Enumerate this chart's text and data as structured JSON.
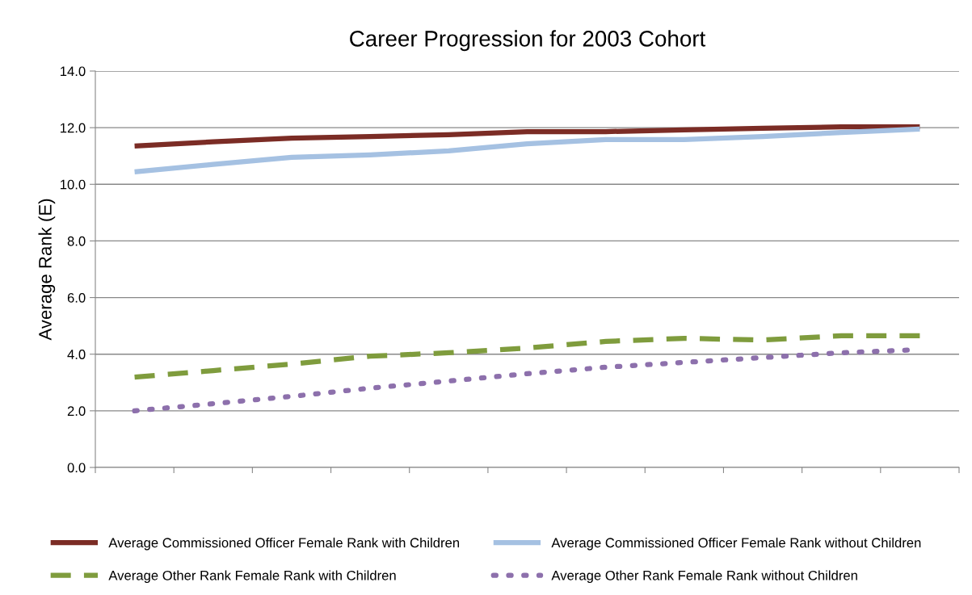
{
  "chart_data": {
    "type": "line",
    "title": "Career Progression for 2003 Cohort",
    "ylabel": "Average Rank (E)",
    "categories": [
      null,
      null,
      null,
      null,
      null,
      null,
      null,
      null,
      null,
      null,
      null
    ],
    "series": [
      {
        "name": "Average Commissioned Officer Female Rank with Children",
        "color": "#7b2c25",
        "line_style": "solid",
        "values": [
          11.35,
          11.5,
          11.63,
          11.69,
          11.75,
          11.86,
          11.86,
          11.92,
          11.98,
          12.03,
          12.03
        ]
      },
      {
        "name": "Average Commissioned Officer Female Rank without Children",
        "color": "#a5c1e2",
        "line_style": "solid",
        "values": [
          10.44,
          10.7,
          10.95,
          11.04,
          11.18,
          11.43,
          11.58,
          11.58,
          11.69,
          11.83,
          11.95
        ]
      },
      {
        "name": "Average Other Rank Female Rank with Children",
        "color": "#7f9c3d",
        "line_style": "dashed",
        "values": [
          3.19,
          3.42,
          3.65,
          3.93,
          4.05,
          4.22,
          4.45,
          4.56,
          4.5,
          4.65,
          4.65
        ]
      },
      {
        "name": "Average Other Rank Female Rank without Children",
        "color": "#8d70ac",
        "line_style": "dotted",
        "values": [
          2.0,
          2.25,
          2.51,
          2.8,
          3.05,
          3.31,
          3.54,
          3.71,
          3.88,
          4.05,
          4.16
        ]
      }
    ],
    "ylim": [
      0,
      14
    ],
    "yticks": [
      {
        "value": 0,
        "label": "0.0"
      },
      {
        "value": 2,
        "label": "2.0"
      },
      {
        "value": 4,
        "label": "4.0"
      },
      {
        "value": 6,
        "label": "6.0"
      },
      {
        "value": 8,
        "label": "8.0"
      },
      {
        "value": 10,
        "label": "10.0"
      },
      {
        "value": 12,
        "label": "12.0"
      },
      {
        "value": 14,
        "label": "14.0"
      }
    ],
    "grid": "y",
    "legend": "bottom",
    "marker": "none"
  }
}
